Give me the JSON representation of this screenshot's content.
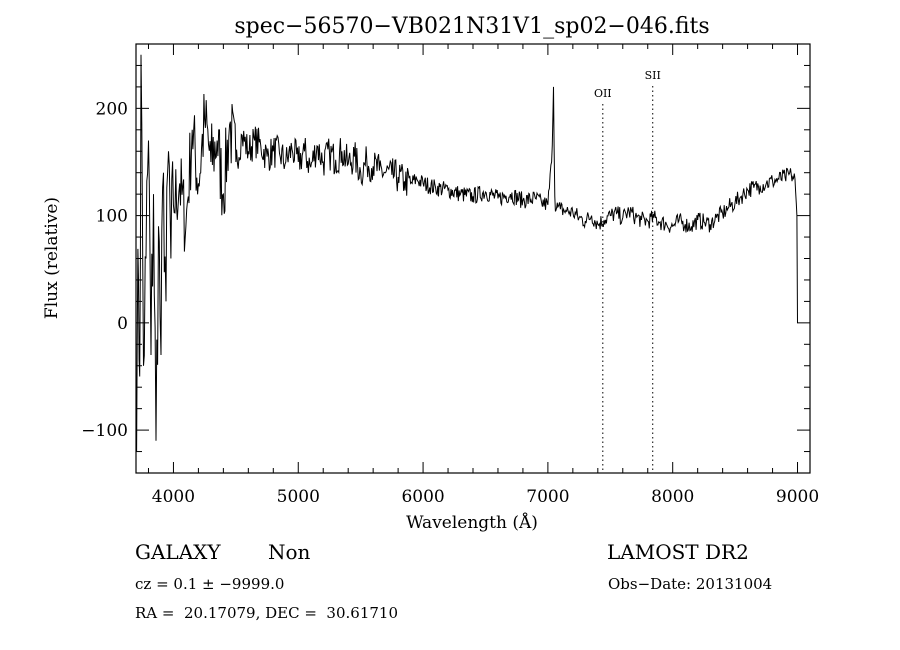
{
  "chart_data": {
    "type": "line",
    "title": "spec−56570−VB021N31V1_sp02−046.fits",
    "xlabel": "Wavelength (Å)",
    "ylabel": "Flux (relative)",
    "xlim": [
      3700,
      9100
    ],
    "ylim": [
      -140,
      260
    ],
    "x_ticks": [
      4000,
      5000,
      6000,
      7000,
      8000,
      9000
    ],
    "y_ticks": [
      -100,
      0,
      100,
      200
    ],
    "x_tick_labels": [
      "4000",
      "5000",
      "6000",
      "7000",
      "8000",
      "9000"
    ],
    "y_tick_labels": [
      "−100",
      "0",
      "100",
      "200"
    ],
    "series": [
      {
        "x": [
          3700,
          3710,
          3720,
          3730,
          3740,
          3760,
          3780,
          3800,
          3820,
          3840,
          3860,
          3880,
          3900,
          3920,
          3940,
          3960,
          3980,
          4000,
          4050,
          4100,
          4150,
          4200,
          4250,
          4300,
          4350,
          4400,
          4450,
          4500,
          4550,
          4600,
          4650,
          4700,
          4750,
          4800,
          4850,
          4900,
          4950,
          5000,
          5050,
          5100,
          5150,
          5200,
          5250,
          5300,
          5350,
          5400,
          5450,
          5500,
          5550,
          5600,
          5650,
          5700,
          5750,
          5800,
          5850,
          5900,
          5950,
          6000,
          6100,
          6200,
          6300,
          6400,
          6500,
          6600,
          6700,
          6800,
          6900,
          6950,
          7000,
          7030,
          7045,
          7055,
          7065,
          7080,
          7100,
          7150,
          7200,
          7250,
          7300,
          7350,
          7400,
          7450,
          7500,
          7550,
          7600,
          7650,
          7700,
          7750,
          7800,
          7850,
          7900,
          7950,
          8000,
          8050,
          8100,
          8150,
          8200,
          8250,
          8300,
          8350,
          8400,
          8450,
          8500,
          8550,
          8600,
          8650,
          8700,
          8750,
          8800,
          8850,
          8900,
          8950,
          8980,
          8995,
          9000
        ],
        "y": [
          -80,
          -20,
          40,
          -50,
          250,
          -40,
          60,
          170,
          -30,
          120,
          -110,
          90,
          -30,
          140,
          20,
          160,
          60,
          110,
          130,
          90,
          180,
          130,
          190,
          150,
          170,
          120,
          185,
          150,
          175,
          160,
          170,
          165,
          155,
          160,
          158,
          150,
          162,
          150,
          160,
          145,
          165,
          150,
          158,
          152,
          160,
          148,
          155,
          140,
          150,
          146,
          142,
          140,
          138,
          136,
          132,
          130,
          134,
          130,
          126,
          124,
          120,
          118,
          122,
          116,
          120,
          114,
          116,
          112,
          110,
          150,
          220,
          118,
          105,
          108,
          106,
          104,
          103,
          98,
          95,
          100,
          92,
          96,
          100,
          102,
          98,
          104,
          99,
          96,
          95,
          98,
          94,
          92,
          90,
          95,
          92,
          90,
          96,
          94,
          92,
          98,
          102,
          108,
          112,
          118,
          124,
          126,
          128,
          130,
          132,
          134,
          136,
          138,
          134,
          100,
          0
        ]
      }
    ],
    "annotations": [
      {
        "label": "OII",
        "x": 7440
      },
      {
        "label": "SII",
        "x": 7840
      }
    ],
    "grid": false,
    "legend": "none"
  },
  "footer": {
    "object_class": "GALAXY",
    "subclass": "Non",
    "survey": "LAMOST DR2",
    "redshift": "cz = 0.1 ± −9999.0",
    "obs_date": "Obs−Date: 20131004",
    "coords": "RA =  20.17079, DEC =  30.61710"
  }
}
